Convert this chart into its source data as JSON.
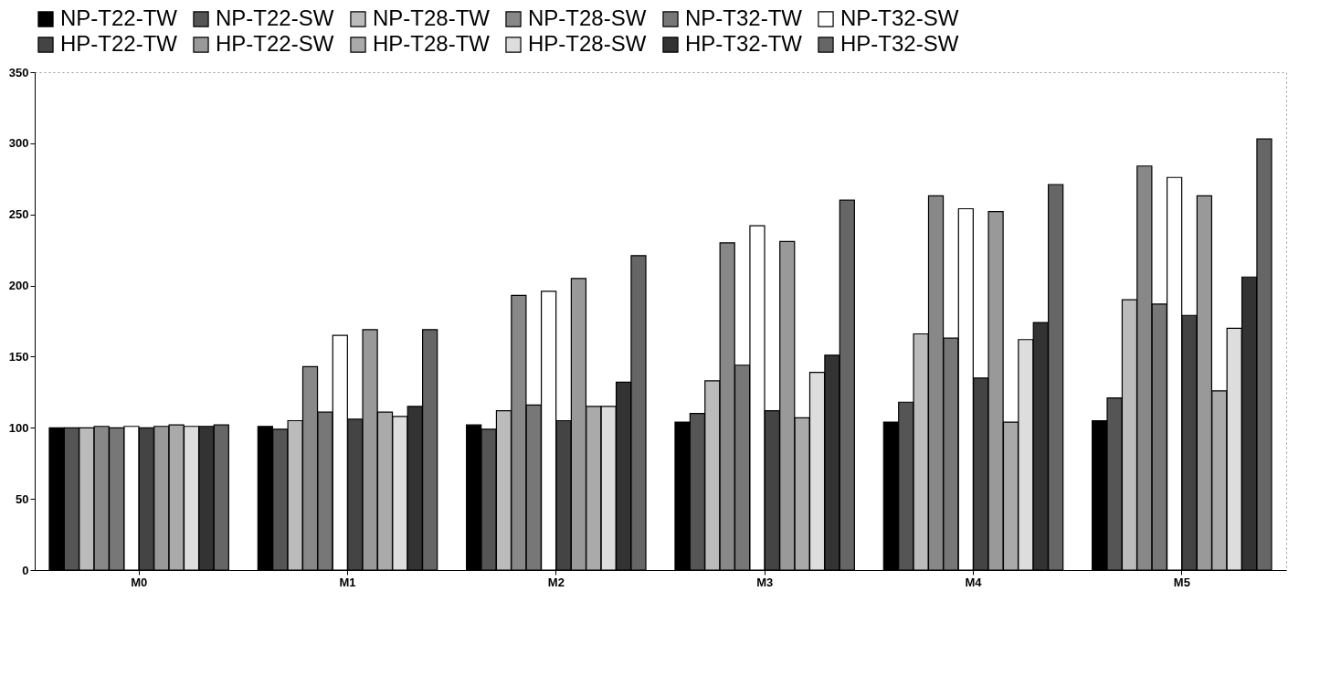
{
  "chart_data": {
    "type": "bar",
    "categories": [
      "M0",
      "M1",
      "M2",
      "M3",
      "M4",
      "M5"
    ],
    "series": [
      {
        "name": "NP-T22-TW",
        "color": "#000000",
        "values": [
          100,
          101,
          102,
          104,
          104,
          105
        ]
      },
      {
        "name": "NP-T22-SW",
        "color": "#555555",
        "values": [
          100,
          99,
          99,
          110,
          118,
          121
        ]
      },
      {
        "name": "NP-T28-TW",
        "color": "#bbbbbb",
        "values": [
          100,
          105,
          112,
          133,
          166,
          190
        ]
      },
      {
        "name": "NP-T28-SW",
        "color": "#888888",
        "values": [
          101,
          143,
          193,
          230,
          263,
          284
        ]
      },
      {
        "name": "NP-T32-TW",
        "color": "#777777",
        "values": [
          100,
          111,
          116,
          144,
          163,
          187
        ]
      },
      {
        "name": "NP-T32-SW",
        "color": "#ffffff",
        "values": [
          101,
          165,
          196,
          242,
          254,
          276
        ]
      },
      {
        "name": "HP-T22-TW",
        "color": "#444444",
        "values": [
          100,
          106,
          105,
          112,
          135,
          179
        ]
      },
      {
        "name": "HP-T22-SW",
        "color": "#999999",
        "values": [
          101,
          169,
          205,
          231,
          252,
          263
        ]
      },
      {
        "name": "HP-T28-TW",
        "color": "#aaaaaa",
        "values": [
          102,
          111,
          115,
          107,
          104,
          126
        ]
      },
      {
        "name": "HP-T28-SW",
        "color": "#dddddd",
        "values": [
          101,
          108,
          115,
          139,
          162,
          170
        ]
      },
      {
        "name": "HP-T32-TW",
        "color": "#333333",
        "values": [
          101,
          115,
          132,
          151,
          174,
          206
        ]
      },
      {
        "name": "HP-T32-SW",
        "color": "#666666",
        "values": [
          102,
          169,
          221,
          260,
          271,
          303
        ]
      }
    ],
    "ylim": [
      0,
      350
    ],
    "yticks": [
      0,
      50,
      100,
      150,
      200,
      250,
      300,
      350
    ],
    "grid": false,
    "legend": "top"
  }
}
